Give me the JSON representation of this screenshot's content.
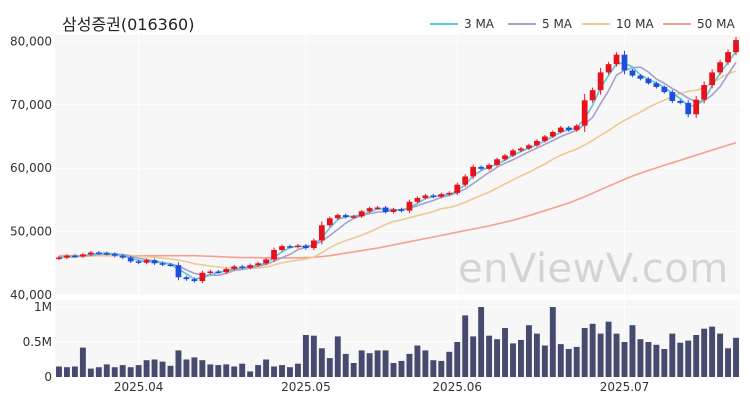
{
  "title": "삼성증권(016360)",
  "watermark": "enViewV.com",
  "colors": {
    "up": "#e8111e",
    "down": "#1e4ee0",
    "ma3": "#5bc8d6",
    "ma5": "#a7a0cf",
    "ma10": "#f0c890",
    "ma50": "#f4a090",
    "volume": "#464a6e",
    "panel_bg": "#f7f7f7",
    "grid": "#ffffff"
  },
  "legend": [
    {
      "label": "3 MA",
      "key": "ma3"
    },
    {
      "label": "5 MA",
      "key": "ma5"
    },
    {
      "label": "10 MA",
      "key": "ma10"
    },
    {
      "label": "50 MA",
      "key": "ma50"
    }
  ],
  "chart_data": {
    "type": "candlestick",
    "title": "삼성증권(016360)",
    "price_ylim": [
      40000,
      81000
    ],
    "price_ticks": [
      40000,
      50000,
      60000,
      70000,
      80000
    ],
    "price_tick_labels": [
      "40,000",
      "50,000",
      "60,000",
      "70,000",
      "80,000"
    ],
    "volume_ylim": [
      0,
      1100000
    ],
    "volume_ticks": [
      0,
      500000,
      1000000
    ],
    "volume_tick_labels": [
      "0",
      "0.5M",
      "1M"
    ],
    "x_tick_labels": [
      {
        "index": 10,
        "label": "2025.04"
      },
      {
        "index": 31,
        "label": "2025.05"
      },
      {
        "index": 50,
        "label": "2025.06"
      },
      {
        "index": 71,
        "label": "2025.07"
      }
    ],
    "close": [
      45900,
      46200,
      46100,
      46400,
      46700,
      46600,
      46500,
      46200,
      45900,
      45300,
      45100,
      45500,
      45000,
      44800,
      44700,
      42800,
      42500,
      42200,
      43500,
      43700,
      43600,
      44100,
      44500,
      44300,
      44700,
      45000,
      45600,
      47100,
      47700,
      47600,
      47800,
      47400,
      48600,
      51000,
      52100,
      52600,
      52300,
      52400,
      53200,
      53700,
      53800,
      53100,
      53500,
      53300,
      54700,
      55300,
      55700,
      55500,
      55900,
      56100,
      57400,
      58700,
      60200,
      59900,
      60500,
      61400,
      62000,
      62800,
      63100,
      63600,
      64300,
      65000,
      65700,
      66400,
      66000,
      66700,
      70700,
      72300,
      75100,
      76400,
      77900,
      75400,
      74600,
      74100,
      73400,
      72800,
      72000,
      70600,
      70300,
      68500,
      70800,
      73100,
      75100,
      76700,
      78300,
      80200
    ],
    "ma3": [
      45950,
      46100,
      46067,
      46233,
      46400,
      46567,
      46600,
      46433,
      46200,
      45800,
      45433,
      45300,
      45200,
      45100,
      44833,
      44100,
      43333,
      42500,
      42733,
      43133,
      43600,
      43800,
      44067,
      44300,
      44500,
      44667,
      45100,
      45900,
      46800,
      47467,
      47700,
      47600,
      47933,
      49000,
      50567,
      51900,
      52333,
      52433,
      52633,
      53100,
      53567,
      53533,
      53467,
      53300,
      53833,
      54433,
      55233,
      55500,
      55700,
      55833,
      56467,
      57400,
      58767,
      59600,
      60200,
      60600,
      61300,
      62067,
      62633,
      63167,
      63667,
      64300,
      65000,
      65700,
      66033,
      66367,
      67800,
      69900,
      72700,
      74600,
      76467,
      76567,
      75967,
      74700,
      74033,
      73433,
      72733,
      71800,
      70967,
      69800,
      69867,
      70800,
      73000,
      74967,
      76700,
      78400
    ],
    "ma5": [
      45960,
      46040,
      46100,
      46140,
      46260,
      46400,
      46480,
      46480,
      46380,
      46100,
      45800,
      45600,
      45360,
      45140,
      44920,
      44560,
      43960,
      43400,
      43140,
      43140,
      43100,
      43400,
      43880,
      44040,
      44240,
      44520,
      44820,
      45340,
      45900,
      46400,
      47160,
      47520,
      47820,
      48480,
      49380,
      50340,
      51320,
      52080,
      52520,
      52840,
      53080,
      53140,
      53360,
      53480,
      53680,
      54060,
      54500,
      54900,
      55420,
      55700,
      56120,
      56720,
      57560,
      58460,
      59340,
      60140,
      60800,
      61320,
      61960,
      62580,
      63160,
      63760,
      64340,
      65000,
      65480,
      65960,
      66900,
      68020,
      70160,
      72240,
      74680,
      75420,
      75840,
      75920,
      75160,
      74060,
      73380,
      72580,
      71820,
      71040,
      70440,
      70660,
      71520,
      72840,
      74800,
      76680
    ],
    "ma10": [
      45900,
      45950,
      46000,
      46050,
      46140,
      46200,
      46260,
      46300,
      46320,
      46240,
      46120,
      46040,
      45940,
      45820,
      45680,
      45500,
      45260,
      44940,
      44740,
      44580,
      44430,
      44290,
      44260,
      44210,
      44210,
      44260,
      44400,
      44740,
      45080,
      45300,
      45510,
      45680,
      45990,
      46680,
      47460,
      48070,
      48590,
      48980,
      49440,
      49940,
      50540,
      51120,
      51610,
      51830,
      52190,
      52500,
      52840,
      53150,
      53610,
      53800,
      54160,
      54600,
      55200,
      55700,
      56230,
      56850,
      57520,
      58170,
      58780,
      59330,
      60020,
      60660,
      61400,
      62050,
      62550,
      63030,
      63690,
      64380,
      65180,
      65930,
      66770,
      67530,
      68200,
      68830,
      69570,
      70200,
      70700,
      71310,
      71800,
      72120,
      72290,
      72640,
      73410,
      74180,
      74880,
      75310
    ],
    "ma50": [
      46200,
      46200,
      46200,
      46200,
      46200,
      46200,
      46200,
      46200,
      46200,
      46200,
      46200,
      46200,
      46200,
      46200,
      46200,
      46200,
      46200,
      46200,
      46150,
      46100,
      46050,
      46000,
      45950,
      45920,
      45900,
      45880,
      45860,
      45850,
      45850,
      45850,
      45860,
      45900,
      45950,
      46050,
      46200,
      46400,
      46600,
      46800,
      47000,
      47200,
      47400,
      47650,
      47900,
      48150,
      48400,
      48650,
      48900,
      49150,
      49400,
      49650,
      49900,
      50150,
      50400,
      50650,
      50900,
      51200,
      51500,
      51800,
      52150,
      52500,
      52900,
      53300,
      53700,
      54100,
      54500,
      55000,
      55500,
      56050,
      56600,
      57150,
      57700,
      58250,
      58750,
      59200,
      59650,
      60050,
      60450,
      60850,
      61250,
      61650,
      62050,
      62450,
      62850,
      63250,
      63650,
      64000
    ],
    "volume": [
      150000,
      140000,
      150000,
      420000,
      120000,
      140000,
      180000,
      140000,
      170000,
      140000,
      170000,
      240000,
      250000,
      220000,
      160000,
      380000,
      250000,
      280000,
      240000,
      180000,
      170000,
      180000,
      150000,
      190000,
      80000,
      170000,
      250000,
      150000,
      170000,
      140000,
      190000,
      600000,
      590000,
      410000,
      270000,
      580000,
      330000,
      200000,
      380000,
      340000,
      380000,
      380000,
      200000,
      230000,
      330000,
      450000,
      380000,
      240000,
      230000,
      360000,
      500000,
      880000,
      580000,
      1000000,
      590000,
      540000,
      700000,
      480000,
      530000,
      740000,
      620000,
      450000,
      1000000,
      470000,
      400000,
      430000,
      700000,
      760000,
      620000,
      790000,
      620000,
      500000,
      740000,
      540000,
      500000,
      460000,
      400000,
      620000,
      490000,
      520000,
      600000,
      690000,
      720000,
      620000,
      410000,
      560000
    ]
  }
}
